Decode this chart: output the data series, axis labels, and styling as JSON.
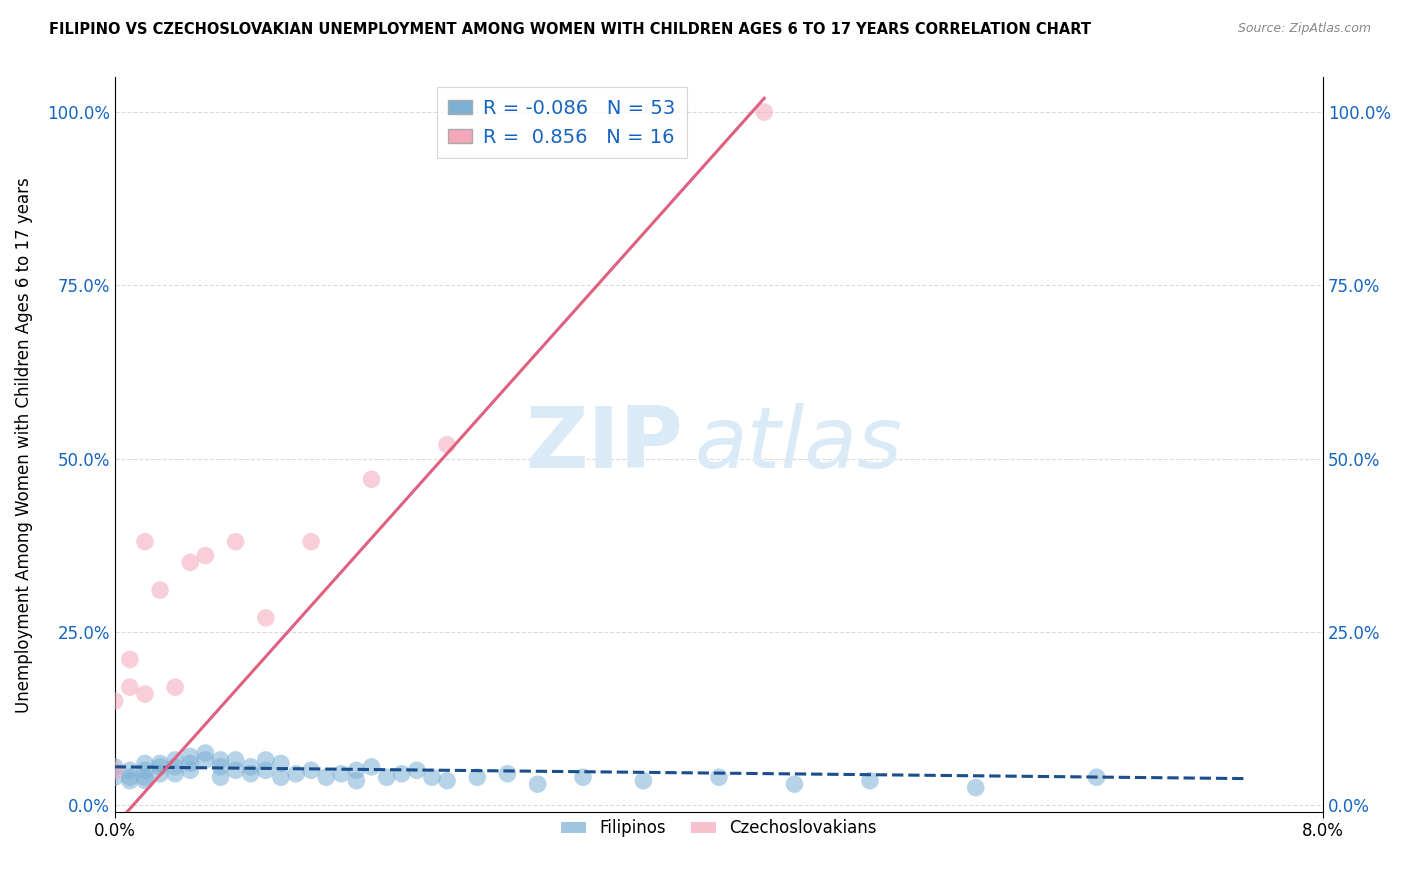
{
  "title": "FILIPINO VS CZECHOSLOVAKIAN UNEMPLOYMENT AMONG WOMEN WITH CHILDREN AGES 6 TO 17 YEARS CORRELATION CHART",
  "source": "Source: ZipAtlas.com",
  "ylabel": "Unemployment Among Women with Children Ages 6 to 17 years",
  "xlim": [
    0.0,
    0.08
  ],
  "ylim": [
    -0.01,
    1.05
  ],
  "yticks": [
    0.0,
    0.25,
    0.5,
    0.75,
    1.0
  ],
  "ytick_labels": [
    "0.0%",
    "25.0%",
    "50.0%",
    "75.0%",
    "100.0%"
  ],
  "xtick_labels": [
    "0.0%",
    "8.0%"
  ],
  "r_filipino": -0.086,
  "n_filipino": 53,
  "r_czech": 0.856,
  "n_czech": 16,
  "color_filipino": "#7bafd4",
  "color_czech": "#f4a7b9",
  "trendline_filipino": "#1a4e8c",
  "trendline_czech": "#e06080",
  "watermark_zip": "ZIP",
  "watermark_atlas": "atlas",
  "watermark_color": "#daeaf7",
  "legend_label_filipino": "Filipinos",
  "legend_label_czech": "Czechoslovakians",
  "filip_x": [
    0.0,
    0.0,
    0.001,
    0.001,
    0.001,
    0.002,
    0.002,
    0.002,
    0.002,
    0.003,
    0.003,
    0.003,
    0.004,
    0.004,
    0.004,
    0.005,
    0.005,
    0.005,
    0.006,
    0.006,
    0.007,
    0.007,
    0.007,
    0.008,
    0.008,
    0.009,
    0.009,
    0.01,
    0.01,
    0.011,
    0.011,
    0.012,
    0.013,
    0.014,
    0.015,
    0.016,
    0.016,
    0.017,
    0.018,
    0.019,
    0.02,
    0.021,
    0.022,
    0.024,
    0.026,
    0.028,
    0.031,
    0.035,
    0.04,
    0.045,
    0.05,
    0.057,
    0.065
  ],
  "filip_y": [
    0.04,
    0.055,
    0.035,
    0.04,
    0.05,
    0.04,
    0.05,
    0.06,
    0.035,
    0.055,
    0.045,
    0.06,
    0.055,
    0.065,
    0.045,
    0.06,
    0.07,
    0.05,
    0.065,
    0.075,
    0.055,
    0.065,
    0.04,
    0.065,
    0.05,
    0.055,
    0.045,
    0.065,
    0.05,
    0.06,
    0.04,
    0.045,
    0.05,
    0.04,
    0.045,
    0.05,
    0.035,
    0.055,
    0.04,
    0.045,
    0.05,
    0.04,
    0.035,
    0.04,
    0.045,
    0.03,
    0.04,
    0.035,
    0.04,
    0.03,
    0.035,
    0.025,
    0.04
  ],
  "czech_x": [
    0.0,
    0.0,
    0.001,
    0.001,
    0.002,
    0.002,
    0.003,
    0.004,
    0.005,
    0.006,
    0.008,
    0.01,
    0.013,
    0.017,
    0.022,
    0.043
  ],
  "czech_y": [
    0.05,
    0.15,
    0.17,
    0.21,
    0.16,
    0.38,
    0.31,
    0.17,
    0.35,
    0.36,
    0.38,
    0.27,
    0.38,
    0.47,
    0.52,
    1.0
  ],
  "filip_trend_x": [
    0.0,
    0.075
  ],
  "filip_trend_y": [
    0.055,
    0.038
  ],
  "czech_trend_x": [
    0.0,
    0.043
  ],
  "czech_trend_y": [
    -0.03,
    1.02
  ]
}
